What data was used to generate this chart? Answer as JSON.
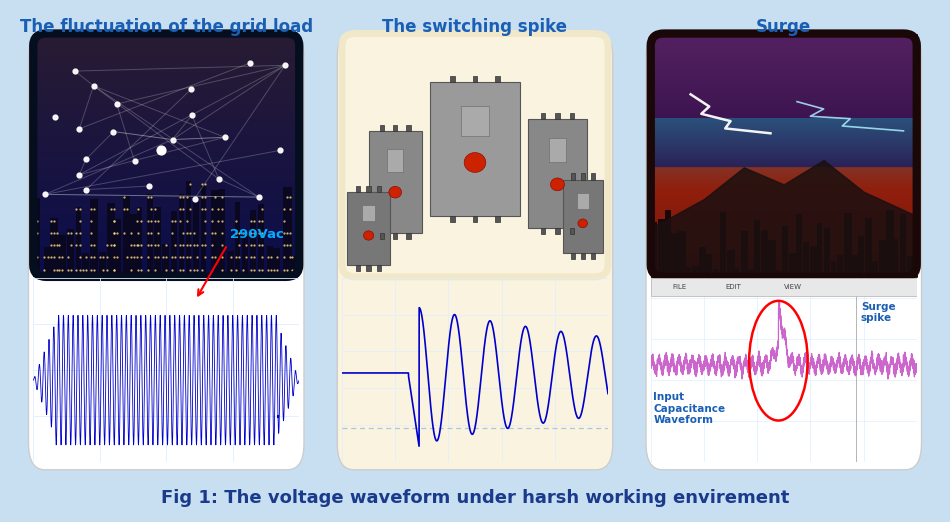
{
  "background_color": "#c8dff2",
  "title_text": "Fig 1: The voltage waveform under harsh working envirement",
  "title_color": "#1a3a8c",
  "title_fontsize": 13,
  "panel_titles": [
    "The fluctuation of the grid load",
    "The switching spike",
    "Surge"
  ],
  "panel_title_color": "#1a5fb4",
  "panel_title_fontsize": 12,
  "panel_bg_1": "#ffffff",
  "panel_bg_2": "#faf3e0",
  "panel_bg_3": "#ffffff",
  "annotation_290vac": "290Vac",
  "annotation_color": "#00aaff",
  "surge_spike_text": "Surge\nspike",
  "input_cap_text": "Input\nCapacitance\nWaveform",
  "waveform_color": "#0000cc",
  "grid_color": "#ddeeff",
  "dashed_line_color": "#99bbdd",
  "panel_edge_color": "#cccccc"
}
